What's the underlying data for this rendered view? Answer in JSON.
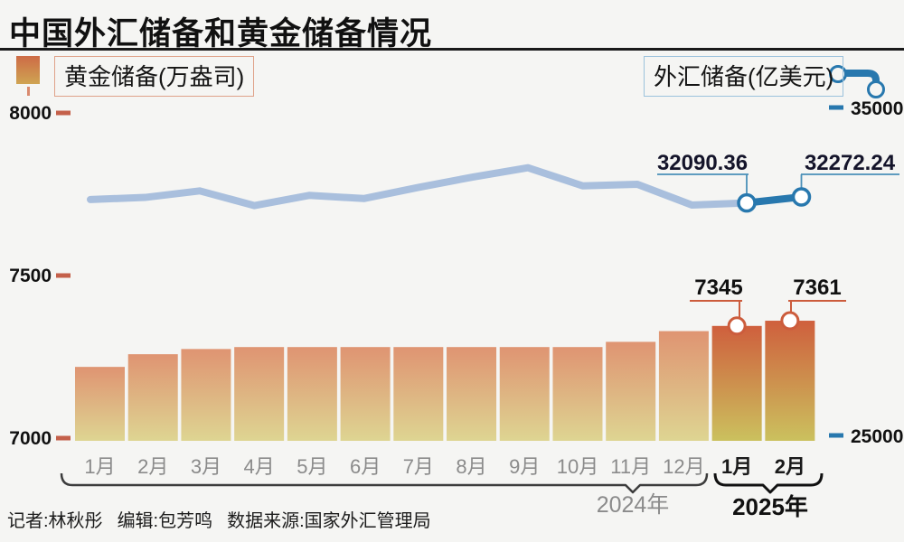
{
  "header": {
    "title": "中国外汇储备和黄金储备情况"
  },
  "legend": {
    "gold_label": "黄金储备(万盎司)",
    "forex_label": "外汇储备(亿美元)",
    "gold_swatch_icon": "gradient-bar-swatch",
    "forex_line_icon": "line-with-markers"
  },
  "footer": {
    "reporter": "记者:林秋彤",
    "editor": "编辑:包芳鸣",
    "source": "数据来源:国家外汇管理局"
  },
  "chart_data": {
    "type": "bar",
    "subtype": "combo-bar-line",
    "categories": [
      "1月",
      "2月",
      "3月",
      "4月",
      "5月",
      "6月",
      "7月",
      "8月",
      "9月",
      "10月",
      "11月",
      "12月",
      "1月",
      "2月"
    ],
    "year_groups": [
      {
        "label": "2024年",
        "start": 0,
        "end": 11
      },
      {
        "label": "2025年",
        "start": 12,
        "end": 13
      }
    ],
    "series": [
      {
        "name": "黄金储备(万盎司)",
        "type": "bar",
        "axis": "left",
        "values": [
          7219,
          7258,
          7274,
          7280,
          7280,
          7280,
          7280,
          7280,
          7280,
          7280,
          7296,
          7329,
          7345,
          7361
        ],
        "highlight_from": 12,
        "labels": [
          {
            "index": 12,
            "text": "7345"
          },
          {
            "index": 13,
            "text": "7361"
          }
        ]
      },
      {
        "name": "外汇储备(亿美元)",
        "type": "line",
        "axis": "right",
        "values": [
          32193,
          32258,
          32457,
          32008,
          32320,
          32224,
          32564,
          32882,
          33164,
          32611,
          32659,
          32024,
          32090.36,
          32272.24
        ],
        "highlight_from": 12,
        "labels": [
          {
            "index": 12,
            "text": "32090.36"
          },
          {
            "index": 13,
            "text": "32272.24"
          }
        ]
      }
    ],
    "left_axis": {
      "ticks": [
        "8000",
        "7500",
        "7000"
      ],
      "range": [
        7000,
        8000
      ]
    },
    "right_axis": {
      "ticks": [
        "35000",
        "25000"
      ],
      "range": [
        25000,
        35000
      ]
    },
    "grid": false,
    "legend_position": "top",
    "colors": {
      "bar_top": "#cf5f3d",
      "bar_bottom": "#cbc15e",
      "bar_faded_top": "#df9472",
      "bar_faded_bottom": "#ded592",
      "line_past": "#a9bfdd",
      "line_current": "#2878ae",
      "left_tick": "#c4604a",
      "right_tick": "#2878ae",
      "gold_callout": "#cc5c3c",
      "forex_callout": "#4a90b8",
      "month_past": "#8b8b8b",
      "month_current": "#1a1a1a",
      "background": "#f5f5f3"
    }
  }
}
